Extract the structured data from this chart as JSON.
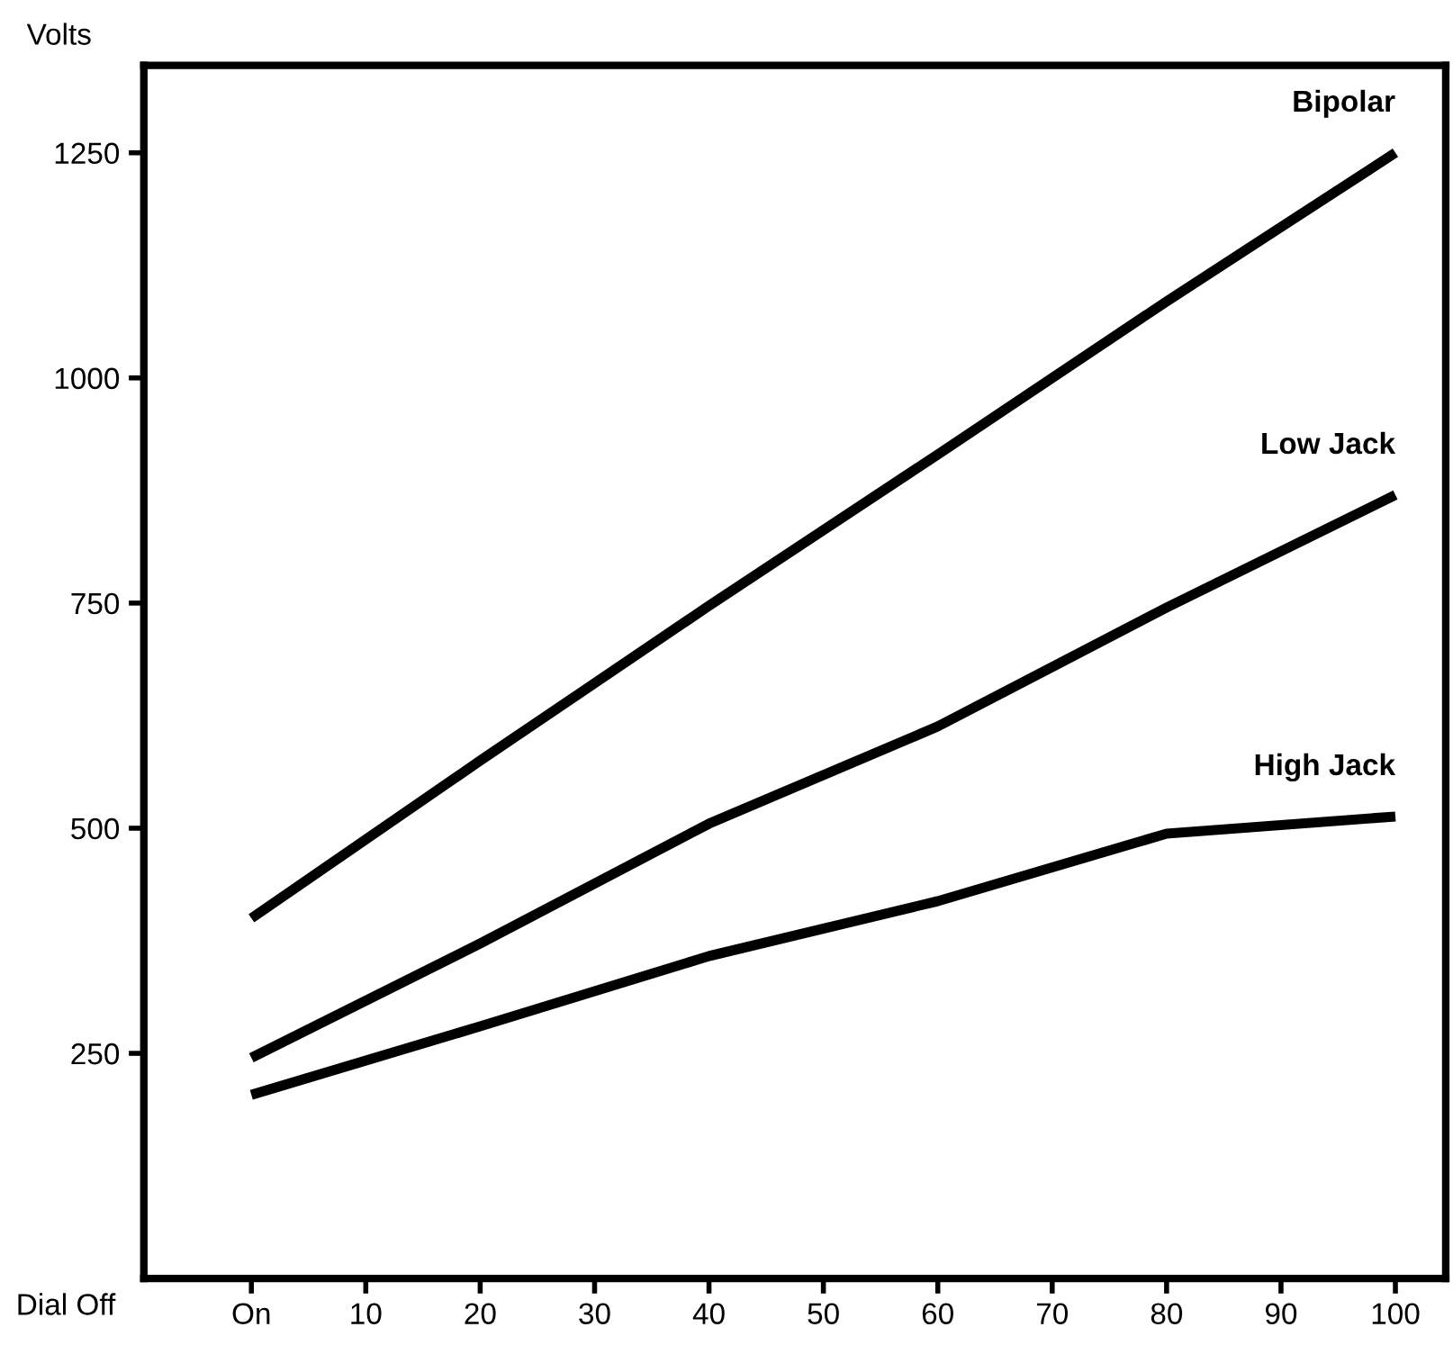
{
  "chart_data": {
    "type": "line",
    "xlabel": "Dial Off",
    "ylabel": "Volts",
    "xlim": [
      -9.4,
      104.4
    ],
    "ylim": [
      0,
      1347
    ],
    "xticks": [
      {
        "value": 0,
        "label": "On"
      },
      10,
      20,
      30,
      40,
      50,
      60,
      70,
      80,
      90,
      100
    ],
    "yticks": [
      250,
      500,
      750,
      1000,
      1250
    ],
    "grid": false,
    "legend": false,
    "marker": "none",
    "line_style": "solid",
    "series": [
      {
        "name": "Bipolar",
        "color": "#000000",
        "x": [
          0,
          20,
          40,
          60,
          80,
          100
        ],
        "values": [
          400,
          575,
          747,
          915,
          1085,
          1250
        ]
      },
      {
        "name": "Low Jack",
        "color": "#000000",
        "x": [
          0,
          20,
          40,
          60,
          80,
          100
        ],
        "values": [
          245,
          372,
          505,
          613,
          745,
          870
        ]
      },
      {
        "name": "High Jack",
        "color": "#000000",
        "x": [
          0,
          20,
          40,
          60,
          80,
          100
        ],
        "values": [
          204,
          280,
          358,
          419,
          494,
          513
        ]
      }
    ]
  }
}
